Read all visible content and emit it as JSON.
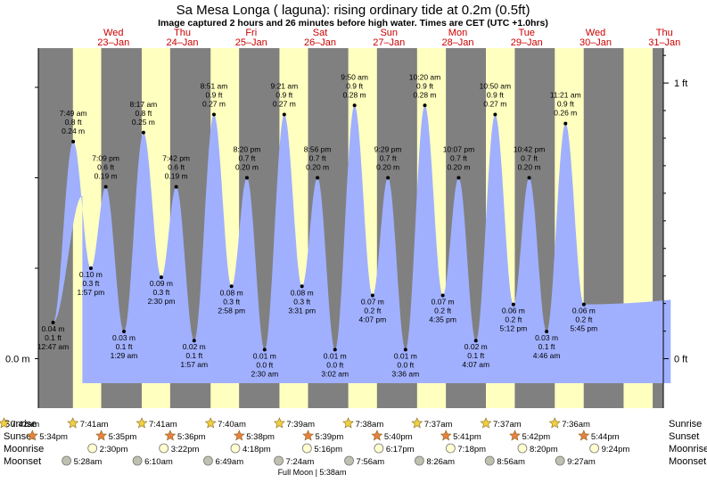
{
  "chart_data": {
    "type": "area",
    "title": "Sa Mesa Longa ( laguna): rising  ordinary tide at 0.2m (0.5ft)",
    "subtitle": "Image captured 2 hours and 26 minutes before high water. Times are CET (UTC +1.0hrs)",
    "days": [
      {
        "name": "Wed",
        "date": "23–Jan"
      },
      {
        "name": "Thu",
        "date": "24–Jan"
      },
      {
        "name": "Fri",
        "date": "25–Jan"
      },
      {
        "name": "Sat",
        "date": "26–Jan"
      },
      {
        "name": "Sun",
        "date": "27–Jan"
      },
      {
        "name": "Mon",
        "date": "28–Jan"
      },
      {
        "name": "Tue",
        "date": "29–Jan"
      },
      {
        "name": "Wed",
        "date": "30–Jan"
      },
      {
        "name": "Thu",
        "date": "31–Jan"
      }
    ],
    "left_axis": {
      "label": "0.0 m",
      "value": 0.0
    },
    "right_axis": [
      {
        "label": "1 ft",
        "value_m": 0.3048
      },
      {
        "label": "0 ft",
        "value_m": 0.0
      }
    ],
    "ylim_m": [
      -0.09,
      1.1
    ],
    "start_hour": 11,
    "end_hour": 216,
    "tides": [
      {
        "day": 0,
        "time": "12:47 am",
        "height_m": 0.04,
        "m": "0.04 m",
        "ft": "0.1 ft",
        "kind": "low"
      },
      {
        "day": 0,
        "time": "7:49 am",
        "height_m": 0.24,
        "m": "0.24 m",
        "ft": "0.8 ft",
        "kind": "high"
      },
      {
        "day": 0,
        "time": "1:57 pm",
        "height_m": 0.1,
        "m": "0.10 m",
        "ft": "0.3 ft",
        "kind": "low"
      },
      {
        "day": 0,
        "time": "7:09 pm",
        "height_m": 0.19,
        "m": "0.19 m",
        "ft": "0.6 ft",
        "kind": "high"
      },
      {
        "day": 1,
        "time": "1:29 am",
        "height_m": 0.03,
        "m": "0.03 m",
        "ft": "0.1 ft",
        "kind": "low"
      },
      {
        "day": 1,
        "time": "8:17 am",
        "height_m": 0.25,
        "m": "0.25 m",
        "ft": "0.8 ft",
        "kind": "high"
      },
      {
        "day": 1,
        "time": "2:30 pm",
        "height_m": 0.09,
        "m": "0.09 m",
        "ft": "0.3 ft",
        "kind": "low"
      },
      {
        "day": 1,
        "time": "7:42 pm",
        "height_m": 0.19,
        "m": "0.19 m",
        "ft": "0.6 ft",
        "kind": "high"
      },
      {
        "day": 2,
        "time": "1:57 am",
        "height_m": 0.02,
        "m": "0.02 m",
        "ft": "0.1 ft",
        "kind": "low"
      },
      {
        "day": 2,
        "time": "8:51 am",
        "height_m": 0.27,
        "m": "0.27 m",
        "ft": "0.9 ft",
        "kind": "high"
      },
      {
        "day": 2,
        "time": "2:58 pm",
        "height_m": 0.08,
        "m": "0.08 m",
        "ft": "0.3 ft",
        "kind": "low"
      },
      {
        "day": 2,
        "time": "8:20 pm",
        "height_m": 0.2,
        "m": "0.20 m",
        "ft": "0.7 ft",
        "kind": "high"
      },
      {
        "day": 3,
        "time": "2:30 am",
        "height_m": 0.01,
        "m": "0.01 m",
        "ft": "0.0 ft",
        "kind": "low"
      },
      {
        "day": 3,
        "time": "9:21 am",
        "height_m": 0.27,
        "m": "0.27 m",
        "ft": "0.9 ft",
        "kind": "high"
      },
      {
        "day": 3,
        "time": "3:31 pm",
        "height_m": 0.08,
        "m": "0.08 m",
        "ft": "0.3 ft",
        "kind": "low"
      },
      {
        "day": 3,
        "time": "8:56 pm",
        "height_m": 0.2,
        "m": "0.20 m",
        "ft": "0.7 ft",
        "kind": "high"
      },
      {
        "day": 4,
        "time": "3:02 am",
        "height_m": 0.01,
        "m": "0.01 m",
        "ft": "0.0 ft",
        "kind": "low"
      },
      {
        "day": 4,
        "time": "9:50 am",
        "height_m": 0.28,
        "m": "0.28 m",
        "ft": "0.9 ft",
        "kind": "high"
      },
      {
        "day": 4,
        "time": "4:07 pm",
        "height_m": 0.07,
        "m": "0.07 m",
        "ft": "0.2 ft",
        "kind": "low"
      },
      {
        "day": 4,
        "time": "9:29 pm",
        "height_m": 0.2,
        "m": "0.20 m",
        "ft": "0.7 ft",
        "kind": "high"
      },
      {
        "day": 5,
        "time": "3:36 am",
        "height_m": 0.01,
        "m": "0.01 m",
        "ft": "0.0 ft",
        "kind": "low"
      },
      {
        "day": 5,
        "time": "10:20 am",
        "height_m": 0.28,
        "m": "0.28 m",
        "ft": "0.9 ft",
        "kind": "high"
      },
      {
        "day": 5,
        "time": "4:35 pm",
        "height_m": 0.07,
        "m": "0.07 m",
        "ft": "0.2 ft",
        "kind": "low"
      },
      {
        "day": 5,
        "time": "10:07 pm",
        "height_m": 0.2,
        "m": "0.20 m",
        "ft": "0.7 ft",
        "kind": "high"
      },
      {
        "day": 6,
        "time": "4:07 am",
        "height_m": 0.02,
        "m": "0.02 m",
        "ft": "0.1 ft",
        "kind": "low"
      },
      {
        "day": 6,
        "time": "10:50 am",
        "height_m": 0.27,
        "m": "0.27 m",
        "ft": "0.9 ft",
        "kind": "high"
      },
      {
        "day": 6,
        "time": "5:12 pm",
        "height_m": 0.06,
        "m": "0.06 m",
        "ft": "0.2 ft",
        "kind": "low"
      },
      {
        "day": 6,
        "time": "10:42 pm",
        "height_m": 0.2,
        "m": "0.20 m",
        "ft": "0.7 ft",
        "kind": "high"
      },
      {
        "day": 7,
        "time": "4:46 am",
        "height_m": 0.03,
        "m": "0.03 m",
        "ft": "0.1 ft",
        "kind": "low"
      },
      {
        "day": 7,
        "time": "11:21 am",
        "height_m": 0.26,
        "m": "0.26 m",
        "ft": "0.9 ft",
        "kind": "high"
      },
      {
        "day": 7,
        "time": "5:45 pm",
        "height_m": 0.06,
        "m": "0.06 m",
        "ft": "0.2 ft",
        "kind": "low"
      }
    ],
    "sunrise": [
      "7:42am",
      "7:41am",
      "7:41am",
      "7:40am",
      "7:39am",
      "7:38am",
      "7:37am",
      "7:37am",
      "7:36am"
    ],
    "sunset": [
      "5:34pm",
      "5:35pm",
      "5:36pm",
      "5:38pm",
      "5:39pm",
      "5:40pm",
      "5:41pm",
      "5:42pm",
      "5:44pm"
    ],
    "moonrise": [
      "2:30pm",
      "3:22pm",
      "4:18pm",
      "5:16pm",
      "6:17pm",
      "7:18pm",
      "8:20pm",
      "9:24pm"
    ],
    "moonset": [
      "5:28am",
      "6:10am",
      "6:49am",
      "7:24am",
      "7:56am",
      "8:26am",
      "8:56am",
      "9:27am"
    ],
    "rows": {
      "sunrise": "Sunrise",
      "sunset": "Sunset",
      "moonrise": "Moonrise",
      "moonset": "Moonset"
    },
    "full_moon": "Full Moon | 5:38am",
    "colors": {
      "night": "#808080",
      "day": "#ffffc0",
      "water": "#a0b0ff",
      "sun": "#f0d040",
      "sunset": "#e88040",
      "moon": "#ffffd0",
      "moonset": "#c0c0b0",
      "daytext": "#cc0000"
    }
  }
}
